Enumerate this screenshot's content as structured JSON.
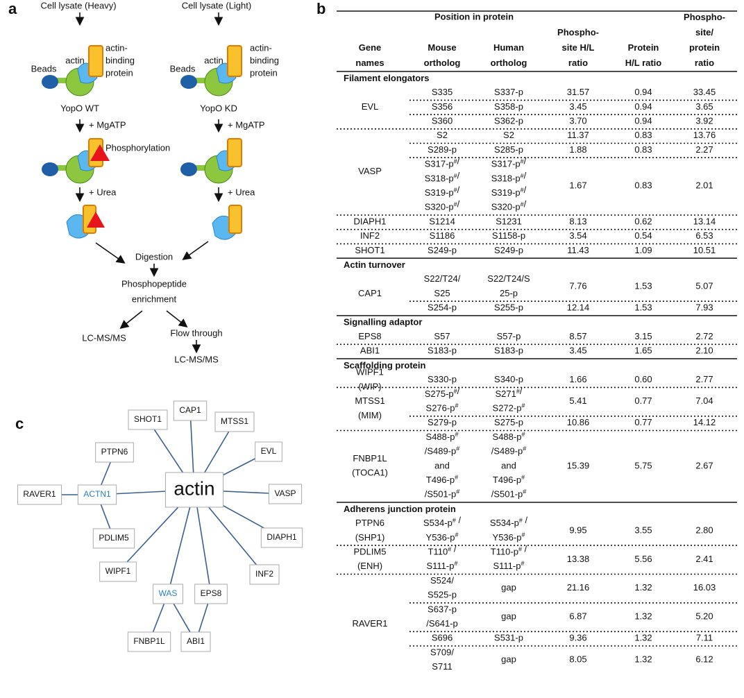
{
  "panel_a": {
    "label": "a",
    "heavy": "Cell lysate (Heavy)",
    "light": "Cell lysate (Light)",
    "actin_left": "actin",
    "actin_right": "actin",
    "abp_left": [
      "actin-",
      "binding",
      "protein"
    ],
    "abp_right": [
      "actin-",
      "binding",
      "protein"
    ],
    "beads_left": "Beads",
    "beads_right": "Beads",
    "wt": "YopO WT",
    "kd": "YopO KD",
    "mgatp_left": "+ MgATP",
    "mgatp_right": "+ MgATP",
    "phosphorylation": "Phosphorylation",
    "urea_left": "+ Urea",
    "urea_right": "+ Urea",
    "digestion": "Digestion",
    "enrichment": [
      "Phosphopeptide",
      "enrichment"
    ],
    "lcms_left": "LC-MS/MS",
    "flow_through": "Flow through",
    "lcms_right": "LC-MS/MS"
  },
  "panel_b": {
    "label": "b",
    "position_header": "Position in protein",
    "columns": [
      "Gene\nnames",
      "Mouse\northolog",
      "Human\northolog",
      "Phospho-\nsite H/L\nratio",
      "Protein\nH/L ratio",
      "Phospho-\nsite/\nprotein\nratio"
    ],
    "groups": [
      {
        "title": "Filament elongators",
        "genes": [
          {
            "name": "EVL",
            "rows": [
              [
                "S335",
                "S337-p",
                "31.57",
                "0.94",
                "33.45"
              ],
              [
                "S356",
                "S358-p",
                "3.45",
                "0.94",
                "3.65"
              ],
              [
                "S360",
                "S362-p",
                "3.70",
                "0.94",
                "3.92"
              ]
            ]
          },
          {
            "name": "VASP",
            "rows": [
              [
                "S2",
                "S2",
                "11.37",
                "0.83",
                "13.76"
              ],
              [
                "S289-p",
                "S285-p",
                "1.88",
                "0.83",
                "2.27"
              ],
              [
                "S317-p#/\nS318-p#/\nS319-p#/\nS320-p#/",
                "S317-p#/\nS318-p#/\nS319-p#/\nS320-p#/",
                "1.67",
                "0.83",
                "2.01"
              ]
            ]
          },
          {
            "name": "DIAPH1",
            "rows": [
              [
                "S1214",
                "S1231",
                "8.13",
                "0.62",
                "13.14"
              ]
            ]
          },
          {
            "name": "INF2",
            "rows": [
              [
                "S1186",
                "S1158-p",
                "3.54",
                "0.54",
                "6.53"
              ]
            ]
          },
          {
            "name": "SHOT1",
            "rows": [
              [
                "S249-p",
                "S249-p",
                "11.43",
                "1.09",
                "10.51"
              ]
            ]
          }
        ]
      },
      {
        "title": "Actin turnover",
        "genes": [
          {
            "name": "CAP1",
            "rows": [
              [
                "S22/T24/\nS25",
                "S22/T24/S\n25-p",
                "7.76",
                "1.53",
                "5.07"
              ],
              [
                "S254-p",
                "S255-p",
                "12.14",
                "1.53",
                "7.93"
              ]
            ]
          }
        ]
      },
      {
        "title": "Signalling adaptor",
        "genes": [
          {
            "name": "EPS8",
            "rows": [
              [
                "S57",
                "S57-p",
                "8.57",
                "3.15",
                "2.72"
              ]
            ]
          },
          {
            "name": "ABI1",
            "rows": [
              [
                "S183-p",
                "S183-p",
                "3.45",
                "1.65",
                "2.10"
              ]
            ]
          }
        ]
      },
      {
        "title": "Scaffolding protein",
        "genes": [
          {
            "name": "WIPF1\n(WIP)",
            "rows": [
              [
                "S330-p",
                "S340-p",
                "1.66",
                "0.60",
                "2.77"
              ]
            ]
          },
          {
            "name": "MTSS1\n(MIM)",
            "rows": [
              [
                "S275-p#/\nS276-p#",
                "S271#/\nS272-p#",
                "5.41",
                "0.77",
                "7.04"
              ],
              [
                "S279-p",
                "S275-p",
                "10.86",
                "0.77",
                "14.12"
              ]
            ]
          },
          {
            "name": "FNBP1L\n(TOCA1)",
            "rows": [
              [
                "S488-p#\n/S489-p#\nand\nT496-p#\n/S501-p#",
                "S488-p#\n/S489-p#\nand\nT496-p#\n/S501-p#",
                "15.39",
                "5.75",
                "2.67"
              ]
            ]
          }
        ]
      },
      {
        "title": "Adherens junction protein",
        "genes": [
          {
            "name": "PTPN6\n(SHP1)",
            "rows": [
              [
                "S534-p# /\nY536-p#",
                "S534-p# /\nY536-p#",
                "9.95",
                "3.55",
                "2.80"
              ]
            ]
          },
          {
            "name": "PDLIM5\n(ENH)",
            "rows": [
              [
                "T110# /\nS111-p#",
                "T110-p# /\nS111-p#",
                "13.38",
                "5.56",
                "2.41"
              ]
            ]
          },
          {
            "name": "RAVER1",
            "rows": [
              [
                "S524/\nS525-p",
                "gap",
                "21.16",
                "1.32",
                "16.03"
              ],
              [
                "S637-p\n/S641-p",
                "gap",
                "6.87",
                "1.32",
                "5.20"
              ],
              [
                "S696",
                "S531-p",
                "9.36",
                "1.32",
                "7.11"
              ],
              [
                "S709/\nS711",
                "gap",
                "8.05",
                "1.32",
                "6.12"
              ]
            ]
          }
        ]
      }
    ]
  },
  "panel_c": {
    "label": "c",
    "center": "actin",
    "nodes": [
      "SHOT1",
      "CAP1",
      "MTSS1",
      "PTPN6",
      "EVL",
      "RAVER1",
      "ACTN1",
      "VASP",
      "PDLIM5",
      "DIAPH1",
      "WIPF1",
      "INF2",
      "WAS",
      "EPS8",
      "FNBP1L",
      "ABI1"
    ]
  }
}
